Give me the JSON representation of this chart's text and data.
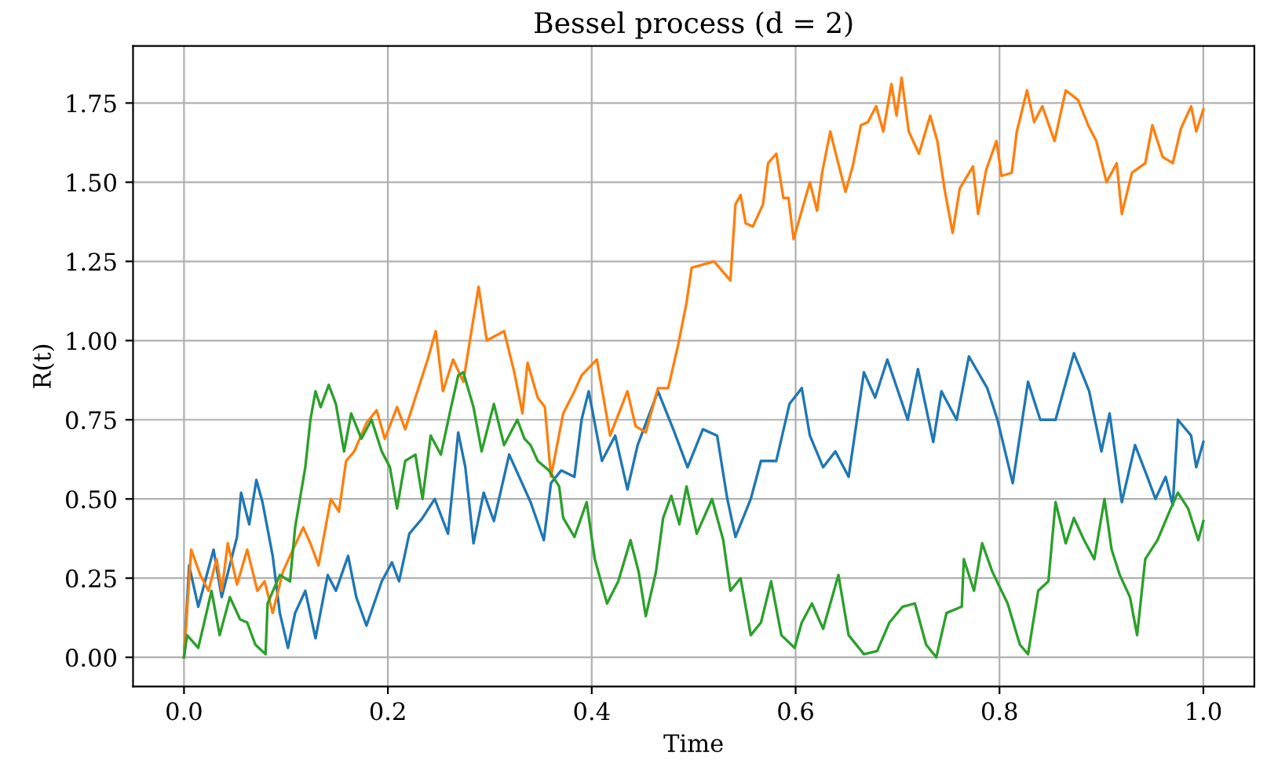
{
  "chart_data": {
    "type": "line",
    "title": "Bessel process (d = 2)",
    "xlabel": "Time",
    "ylabel": "R(t)",
    "grid": true,
    "legend": false,
    "xlim": [
      -0.05,
      1.05
    ],
    "ylim": [
      -0.092,
      1.93
    ],
    "xticks": [
      {
        "value": 0,
        "label": "0.0"
      },
      {
        "value": 0.2,
        "label": "0.2"
      },
      {
        "value": 0.4,
        "label": "0.4"
      },
      {
        "value": 0.6,
        "label": "0.6"
      },
      {
        "value": 0.8,
        "label": "0.8"
      },
      {
        "value": 1,
        "label": "1.0"
      }
    ],
    "yticks": [
      {
        "value": 0,
        "label": "0.00"
      },
      {
        "value": 0.25,
        "label": "0.25"
      },
      {
        "value": 0.5,
        "label": "0.50"
      },
      {
        "value": 0.75,
        "label": "0.75"
      },
      {
        "value": 1,
        "label": "1.00"
      },
      {
        "value": 1.25,
        "label": "1.25"
      },
      {
        "value": 1.5,
        "label": "1.50"
      },
      {
        "value": 1.75,
        "label": "1.75"
      }
    ],
    "series": [
      {
        "color": "#1f77b4",
        "x": [
          0,
          0.005,
          0.014,
          0.029,
          0.037,
          0.052,
          0.056,
          0.064,
          0.071,
          0.077,
          0.087,
          0.094,
          0.102,
          0.109,
          0.119,
          0.129,
          0.141,
          0.149,
          0.161,
          0.169,
          0.179,
          0.194,
          0.204,
          0.211,
          0.221,
          0.234,
          0.246,
          0.259,
          0.269,
          0.276,
          0.284,
          0.294,
          0.304,
          0.319,
          0.34,
          0.353,
          0.36,
          0.37,
          0.383,
          0.39,
          0.397,
          0.41,
          0.423,
          0.435,
          0.445,
          0.465,
          0.48,
          0.494,
          0.509,
          0.523,
          0.533,
          0.541,
          0.556,
          0.566,
          0.581,
          0.594,
          0.606,
          0.614,
          0.627,
          0.639,
          0.652,
          0.667,
          0.678,
          0.69,
          0.71,
          0.72,
          0.735,
          0.743,
          0.758,
          0.77,
          0.788,
          0.798,
          0.813,
          0.828,
          0.84,
          0.855,
          0.873,
          0.888,
          0.9,
          0.908,
          0.92,
          0.933,
          0.945,
          0.953,
          0.963,
          0.97,
          0.975,
          0.988,
          0.993,
          1.0
        ],
        "values": [
          0,
          0.29,
          0.16,
          0.34,
          0.19,
          0.38,
          0.52,
          0.42,
          0.56,
          0.49,
          0.32,
          0.14,
          0.03,
          0.14,
          0.21,
          0.06,
          0.26,
          0.21,
          0.32,
          0.19,
          0.1,
          0.24,
          0.3,
          0.24,
          0.39,
          0.44,
          0.5,
          0.39,
          0.71,
          0.6,
          0.36,
          0.52,
          0.43,
          0.64,
          0.49,
          0.37,
          0.55,
          0.59,
          0.57,
          0.75,
          0.84,
          0.62,
          0.7,
          0.53,
          0.67,
          0.84,
          0.72,
          0.6,
          0.72,
          0.7,
          0.5,
          0.38,
          0.5,
          0.62,
          0.62,
          0.8,
          0.85,
          0.7,
          0.6,
          0.65,
          0.57,
          0.9,
          0.82,
          0.94,
          0.75,
          0.91,
          0.68,
          0.84,
          0.75,
          0.95,
          0.85,
          0.75,
          0.55,
          0.87,
          0.75,
          0.75,
          0.96,
          0.84,
          0.65,
          0.77,
          0.49,
          0.67,
          0.57,
          0.5,
          0.57,
          0.48,
          0.75,
          0.7,
          0.6,
          0.68
        ]
      },
      {
        "color": "#ff7f0e",
        "x": [
          0,
          0.007,
          0.016,
          0.024,
          0.032,
          0.037,
          0.043,
          0.052,
          0.062,
          0.072,
          0.079,
          0.087,
          0.097,
          0.104,
          0.117,
          0.124,
          0.132,
          0.144,
          0.152,
          0.159,
          0.167,
          0.179,
          0.189,
          0.197,
          0.209,
          0.217,
          0.229,
          0.239,
          0.247,
          0.254,
          0.264,
          0.274,
          0.289,
          0.297,
          0.314,
          0.324,
          0.332,
          0.337,
          0.347,
          0.354,
          0.36,
          0.372,
          0.383,
          0.39,
          0.405,
          0.418,
          0.435,
          0.443,
          0.453,
          0.465,
          0.475,
          0.485,
          0.493,
          0.498,
          0.52,
          0.536,
          0.541,
          0.546,
          0.551,
          0.558,
          0.568,
          0.573,
          0.581,
          0.588,
          0.593,
          0.598,
          0.606,
          0.614,
          0.621,
          0.626,
          0.634,
          0.641,
          0.649,
          0.656,
          0.664,
          0.671,
          0.679,
          0.686,
          0.694,
          0.699,
          0.704,
          0.711,
          0.721,
          0.732,
          0.739,
          0.746,
          0.754,
          0.761,
          0.774,
          0.779,
          0.787,
          0.797,
          0.802,
          0.812,
          0.817,
          0.827,
          0.834,
          0.842,
          0.854,
          0.865,
          0.877,
          0.887,
          0.895,
          0.905,
          0.915,
          0.92,
          0.93,
          0.943,
          0.95,
          0.96,
          0.97,
          0.978,
          0.988,
          0.993,
          1.0
        ],
        "values": [
          0,
          0.34,
          0.26,
          0.21,
          0.31,
          0.21,
          0.36,
          0.23,
          0.34,
          0.21,
          0.24,
          0.14,
          0.27,
          0.32,
          0.41,
          0.36,
          0.29,
          0.5,
          0.46,
          0.62,
          0.65,
          0.74,
          0.78,
          0.69,
          0.79,
          0.72,
          0.84,
          0.94,
          1.03,
          0.84,
          0.94,
          0.87,
          1.17,
          1.0,
          1.03,
          0.9,
          0.77,
          0.93,
          0.82,
          0.79,
          0.57,
          0.77,
          0.84,
          0.89,
          0.94,
          0.7,
          0.84,
          0.73,
          0.71,
          0.85,
          0.85,
          0.99,
          1.12,
          1.23,
          1.25,
          1.19,
          1.43,
          1.46,
          1.37,
          1.36,
          1.43,
          1.56,
          1.59,
          1.45,
          1.45,
          1.32,
          1.41,
          1.5,
          1.41,
          1.53,
          1.66,
          1.57,
          1.47,
          1.55,
          1.68,
          1.69,
          1.74,
          1.66,
          1.81,
          1.71,
          1.83,
          1.66,
          1.59,
          1.71,
          1.63,
          1.48,
          1.34,
          1.48,
          1.55,
          1.4,
          1.54,
          1.63,
          1.52,
          1.53,
          1.66,
          1.79,
          1.69,
          1.74,
          1.63,
          1.79,
          1.76,
          1.68,
          1.63,
          1.5,
          1.56,
          1.4,
          1.53,
          1.56,
          1.68,
          1.58,
          1.56,
          1.67,
          1.74,
          1.66,
          1.73
        ]
      },
      {
        "color": "#2ca02c",
        "x": [
          0,
          0.003,
          0.014,
          0.022,
          0.027,
          0.035,
          0.045,
          0.055,
          0.062,
          0.07,
          0.08,
          0.082,
          0.094,
          0.104,
          0.109,
          0.119,
          0.124,
          0.129,
          0.134,
          0.142,
          0.149,
          0.157,
          0.164,
          0.174,
          0.184,
          0.194,
          0.202,
          0.209,
          0.217,
          0.227,
          0.234,
          0.242,
          0.252,
          0.262,
          0.269,
          0.274,
          0.284,
          0.292,
          0.304,
          0.314,
          0.327,
          0.334,
          0.34,
          0.347,
          0.358,
          0.368,
          0.372,
          0.383,
          0.395,
          0.403,
          0.415,
          0.426,
          0.438,
          0.446,
          0.453,
          0.463,
          0.47,
          0.478,
          0.486,
          0.493,
          0.503,
          0.518,
          0.529,
          0.536,
          0.546,
          0.556,
          0.566,
          0.576,
          0.586,
          0.599,
          0.606,
          0.616,
          0.627,
          0.642,
          0.652,
          0.667,
          0.68,
          0.692,
          0.705,
          0.717,
          0.728,
          0.738,
          0.748,
          0.763,
          0.765,
          0.775,
          0.783,
          0.793,
          0.808,
          0.82,
          0.828,
          0.838,
          0.848,
          0.855,
          0.865,
          0.873,
          0.883,
          0.893,
          0.903,
          0.91,
          0.918,
          0.928,
          0.935,
          0.943,
          0.955,
          0.968,
          0.975,
          0.985,
          0.995,
          1.0
        ],
        "values": [
          0,
          0.07,
          0.03,
          0.14,
          0.21,
          0.07,
          0.19,
          0.12,
          0.11,
          0.04,
          0.01,
          0.17,
          0.26,
          0.24,
          0.41,
          0.6,
          0.75,
          0.84,
          0.79,
          0.86,
          0.8,
          0.65,
          0.77,
          0.69,
          0.75,
          0.65,
          0.6,
          0.47,
          0.62,
          0.64,
          0.5,
          0.7,
          0.64,
          0.79,
          0.89,
          0.9,
          0.79,
          0.65,
          0.8,
          0.67,
          0.75,
          0.69,
          0.67,
          0.62,
          0.59,
          0.54,
          0.44,
          0.38,
          0.49,
          0.31,
          0.17,
          0.24,
          0.37,
          0.27,
          0.13,
          0.27,
          0.44,
          0.51,
          0.42,
          0.54,
          0.39,
          0.5,
          0.37,
          0.21,
          0.25,
          0.07,
          0.11,
          0.24,
          0.07,
          0.03,
          0.11,
          0.17,
          0.09,
          0.26,
          0.07,
          0.01,
          0.02,
          0.11,
          0.16,
          0.17,
          0.04,
          0,
          0.14,
          0.16,
          0.31,
          0.21,
          0.36,
          0.27,
          0.17,
          0.04,
          0.01,
          0.21,
          0.24,
          0.49,
          0.36,
          0.44,
          0.37,
          0.31,
          0.5,
          0.34,
          0.26,
          0.19,
          0.07,
          0.31,
          0.37,
          0.47,
          0.52,
          0.47,
          0.37,
          0.43
        ]
      }
    ]
  }
}
